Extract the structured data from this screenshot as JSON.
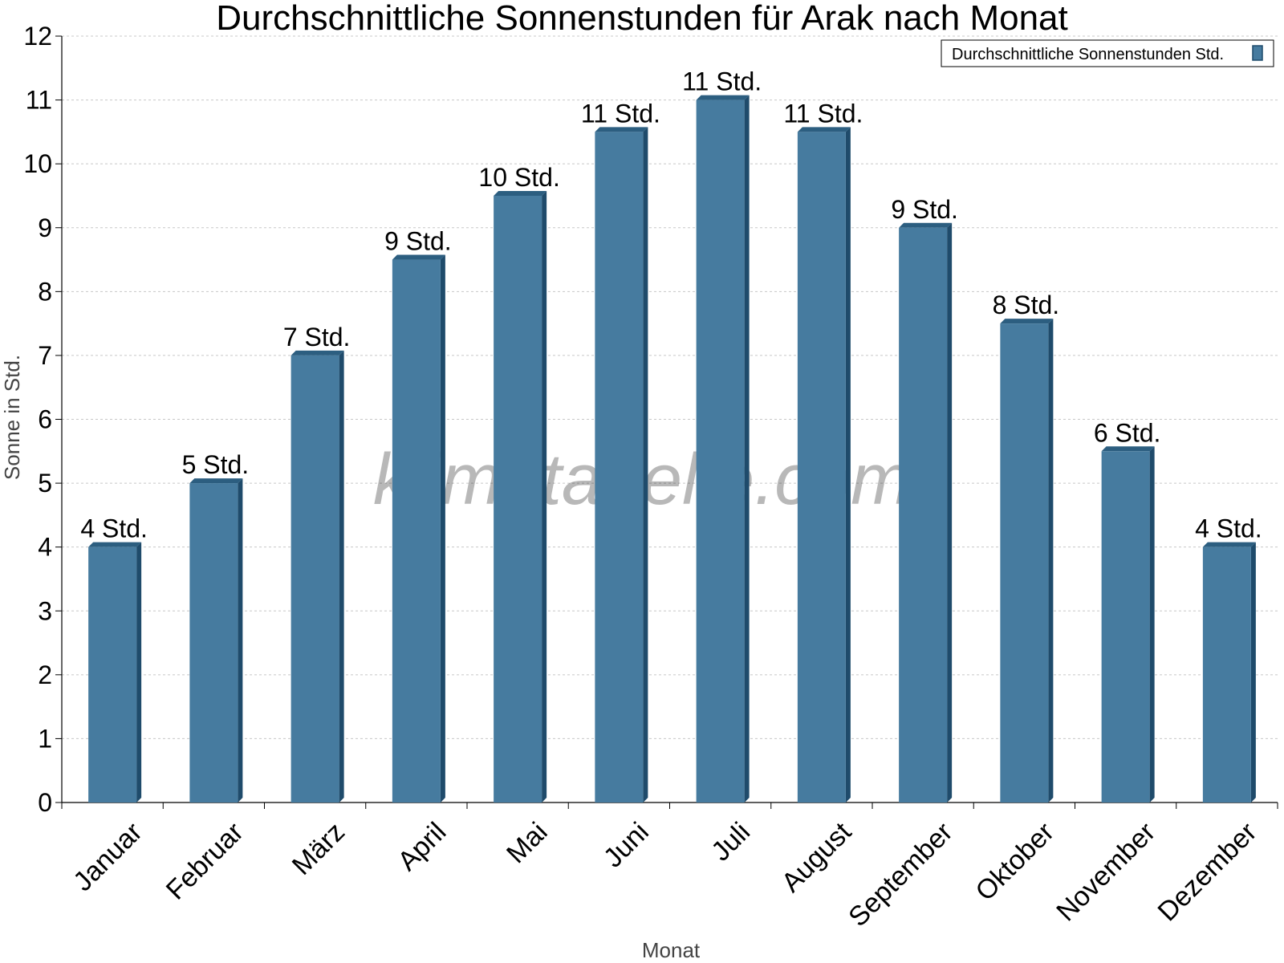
{
  "chart_data": {
    "type": "bar",
    "title": "Durchschnittliche Sonnenstunden für Arak nach Monat",
    "xlabel": "Monat",
    "ylabel": "Sonne in Std.",
    "ylim": [
      0,
      12
    ],
    "yticks": [
      "0",
      "1",
      "2",
      "3",
      "4",
      "5",
      "6",
      "7",
      "8",
      "9",
      "10",
      "11",
      "12"
    ],
    "categories": [
      "Januar",
      "Februar",
      "März",
      "April",
      "Mai",
      "Juni",
      "Juli",
      "August",
      "September",
      "Oktober",
      "November",
      "Dezember"
    ],
    "series": [
      {
        "name": "Durchschnittliche Sonnenstunden Std.",
        "values": [
          4,
          5,
          7,
          8.5,
          9.5,
          10.5,
          11,
          10.5,
          9,
          7.5,
          5.5,
          4
        ],
        "labels": [
          "4 Std.",
          "5 Std.",
          "7 Std.",
          "9 Std.",
          "10 Std.",
          "11 Std.",
          "11 Std.",
          "11 Std.",
          "9 Std.",
          "8 Std.",
          "6 Std.",
          "4 Std."
        ]
      }
    ],
    "grid": true,
    "legend_position": "top-right",
    "colors": {
      "bar": "#467b9f",
      "bar_side": "#1f4b6b",
      "bar_top": "#2c5e80",
      "grid": "#c8c8c8"
    },
    "watermark": "klimatabelle.com"
  }
}
